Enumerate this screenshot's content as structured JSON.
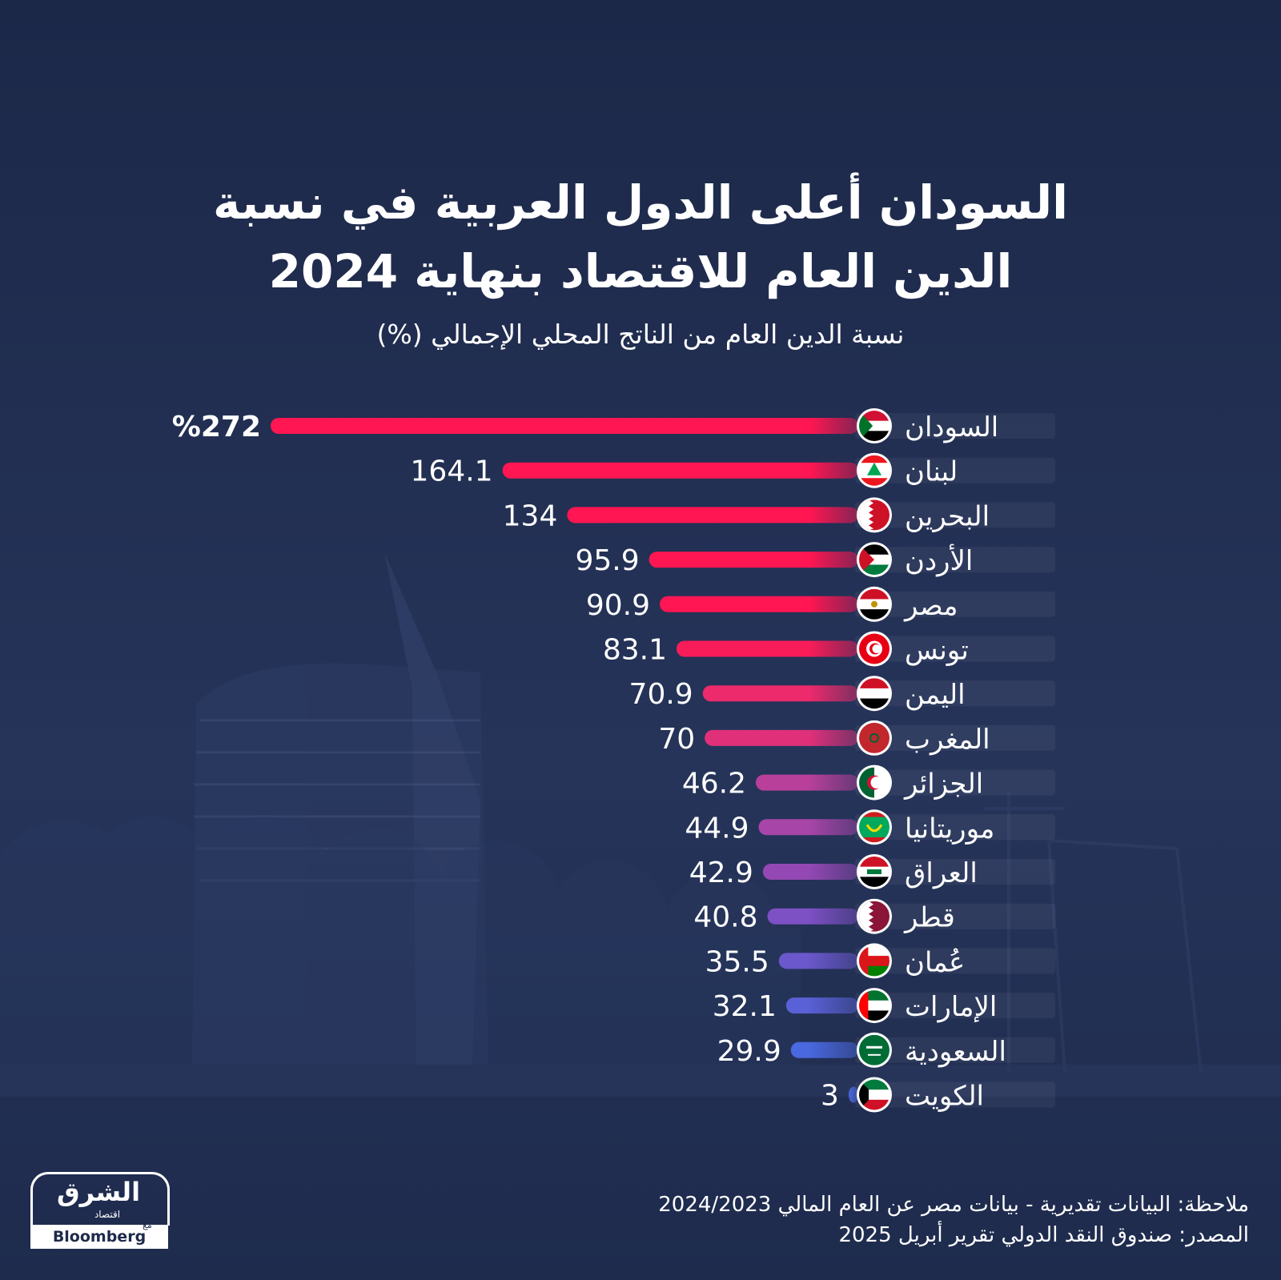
{
  "title_lines": [
    "السودان أعلى الدول العربية في نسبة",
    "الدين العام للاقتصاد بنهاية 2024"
  ],
  "subtitle": "نسبة الدين العام من الناتج المحلي الإجمالي (%)",
  "notes": [
    "ملاحظة: البيانات تقديرية - بيانات مصر عن العام المالي 2024/2023",
    "المصدر: صندوق النقد الدولي تقرير أبريل 2025"
  ],
  "logo": {
    "arabic": "الشرق",
    "sub": "اقتصاد",
    "with": "مع",
    "partner": "Bloomberg"
  },
  "colors": {
    "background": "#1d2a4a",
    "bar_top": "#ff1f5a",
    "bar_bottom": "#4466ee"
  },
  "chart_data": {
    "type": "bar",
    "orientation": "horizontal",
    "categories": [
      "السودان",
      "لبنان",
      "البحرين",
      "الأردن",
      "مصر",
      "تونس",
      "اليمن",
      "المغرب",
      "الجزائر",
      "موريتانيا",
      "العراق",
      "قطر",
      "عُمان",
      "الإمارات",
      "السعودية",
      "الكويت"
    ],
    "values": [
      272,
      164.1,
      134,
      95.9,
      90.9,
      83.1,
      70.9,
      70,
      46.2,
      44.9,
      42.9,
      40.8,
      35.5,
      32.1,
      29.9,
      3
    ],
    "value_labels": [
      "%272",
      "164.1",
      "134",
      "95.9",
      "90.9",
      "83.1",
      "70.9",
      "70",
      "46.2",
      "44.9",
      "42.9",
      "40.8",
      "35.5",
      "32.1",
      "29.9",
      "3"
    ],
    "bar_colors": [
      "#ff1652",
      "#ff1652",
      "#ff1652",
      "#ff1652",
      "#ff1652",
      "#f81c58",
      "#ec2a6c",
      "#e0307a",
      "#b8409a",
      "#a845a8",
      "#9448b4",
      "#7d50c4",
      "#6a58cc",
      "#5a60d6",
      "#4a68e0",
      "#4a68e0"
    ],
    "flags": [
      "sudan-flag",
      "lebanon-flag",
      "bahrain-flag",
      "jordan-flag",
      "egypt-flag",
      "tunisia-flag",
      "yemen-flag",
      "morocco-flag",
      "algeria-flag",
      "mauritania-flag",
      "iraq-flag",
      "qatar-flag",
      "oman-flag",
      "uae-flag",
      "saudi-flag",
      "kuwait-flag"
    ],
    "xlim": [
      0,
      272
    ],
    "grid": false,
    "legend": "none"
  }
}
